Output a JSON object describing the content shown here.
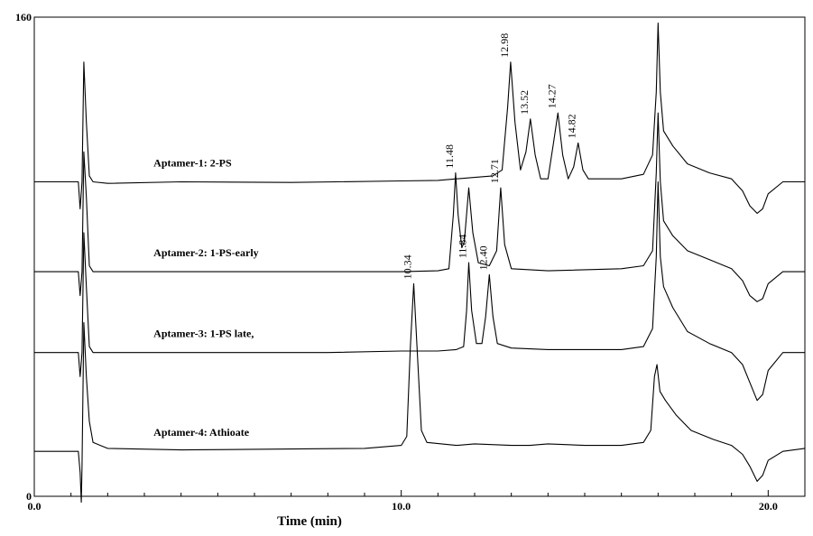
{
  "chart_data": {
    "type": "line",
    "title": "",
    "xlabel": "Time (min)",
    "ylabel": "",
    "xlim": [
      0.0,
      21.0
    ],
    "ylim": [
      0,
      160
    ],
    "x_ticks": [
      {
        "value": 0.0,
        "label": "0.0"
      },
      {
        "value": 10.0,
        "label": "10.0"
      },
      {
        "value": 20.0,
        "label": "20.0"
      }
    ],
    "y_ticks": [
      {
        "value": 0,
        "label": "0"
      },
      {
        "value": 160,
        "label": "160"
      }
    ],
    "grid": false,
    "series": [
      {
        "name": "Aptamer-1: 2-PS",
        "baseline": 105,
        "points": [
          [
            0.0,
            105
          ],
          [
            1.2,
            105
          ],
          [
            1.25,
            96
          ],
          [
            1.3,
            105
          ],
          [
            1.35,
            145
          ],
          [
            1.42,
            125
          ],
          [
            1.5,
            107
          ],
          [
            1.6,
            105
          ],
          [
            2.0,
            104.5
          ],
          [
            4.0,
            105
          ],
          [
            7.0,
            104.8
          ],
          [
            10.0,
            105.3
          ],
          [
            11.0,
            105.5
          ],
          [
            11.5,
            106
          ],
          [
            12.0,
            106.5
          ],
          [
            12.5,
            107
          ],
          [
            12.75,
            109
          ],
          [
            12.9,
            130
          ],
          [
            12.98,
            145
          ],
          [
            13.1,
            125
          ],
          [
            13.25,
            109
          ],
          [
            13.4,
            115
          ],
          [
            13.52,
            126
          ],
          [
            13.65,
            114
          ],
          [
            13.8,
            106
          ],
          [
            14.0,
            106
          ],
          [
            14.15,
            118
          ],
          [
            14.27,
            128
          ],
          [
            14.4,
            114
          ],
          [
            14.55,
            106
          ],
          [
            14.7,
            110
          ],
          [
            14.82,
            118
          ],
          [
            14.95,
            109
          ],
          [
            15.1,
            106
          ],
          [
            16.0,
            106
          ],
          [
            16.6,
            107.5
          ],
          [
            16.85,
            114
          ],
          [
            16.95,
            135
          ],
          [
            17.0,
            158
          ],
          [
            17.06,
            135
          ],
          [
            17.15,
            122
          ],
          [
            17.4,
            117
          ],
          [
            17.8,
            111
          ],
          [
            18.4,
            108
          ],
          [
            19.0,
            106
          ],
          [
            19.3,
            102
          ],
          [
            19.5,
            97
          ],
          [
            19.7,
            94.5
          ],
          [
            19.85,
            96
          ],
          [
            20.0,
            101
          ],
          [
            20.4,
            105
          ],
          [
            21.0,
            105
          ]
        ]
      },
      {
        "name": "Aptamer-2: 1-PS-early",
        "baseline": 75,
        "points": [
          [
            0.0,
            75
          ],
          [
            1.2,
            75
          ],
          [
            1.25,
            67
          ],
          [
            1.3,
            75
          ],
          [
            1.35,
            115
          ],
          [
            1.42,
            100
          ],
          [
            1.5,
            77
          ],
          [
            1.6,
            75
          ],
          [
            4.0,
            75
          ],
          [
            8.0,
            75
          ],
          [
            10.0,
            75
          ],
          [
            11.0,
            75.3
          ],
          [
            11.3,
            76
          ],
          [
            11.42,
            94
          ],
          [
            11.48,
            108
          ],
          [
            11.55,
            94
          ],
          [
            11.65,
            83
          ],
          [
            11.72,
            85
          ],
          [
            11.84,
            103
          ],
          [
            11.95,
            88
          ],
          [
            12.1,
            78
          ],
          [
            12.4,
            77
          ],
          [
            12.6,
            82
          ],
          [
            12.71,
            103
          ],
          [
            12.82,
            84
          ],
          [
            13.0,
            76
          ],
          [
            14.0,
            75.3
          ],
          [
            16.0,
            76
          ],
          [
            16.6,
            77
          ],
          [
            16.85,
            82
          ],
          [
            16.95,
            108
          ],
          [
            17.0,
            128
          ],
          [
            17.06,
            105
          ],
          [
            17.15,
            92
          ],
          [
            17.4,
            87
          ],
          [
            17.8,
            82
          ],
          [
            18.4,
            79
          ],
          [
            19.0,
            76
          ],
          [
            19.3,
            72
          ],
          [
            19.5,
            67
          ],
          [
            19.7,
            65
          ],
          [
            19.85,
            66
          ],
          [
            20.0,
            71
          ],
          [
            20.4,
            75
          ],
          [
            21.0,
            75
          ]
        ]
      },
      {
        "name": "Aptamer-3: 1-PS late,",
        "baseline": 48,
        "points": [
          [
            0.0,
            48
          ],
          [
            1.2,
            48
          ],
          [
            1.25,
            40
          ],
          [
            1.3,
            48
          ],
          [
            1.35,
            88
          ],
          [
            1.42,
            70
          ],
          [
            1.5,
            50
          ],
          [
            1.6,
            48
          ],
          [
            4.0,
            48
          ],
          [
            8.0,
            48
          ],
          [
            10.0,
            48.5
          ],
          [
            11.0,
            48.5
          ],
          [
            11.5,
            49
          ],
          [
            11.7,
            50
          ],
          [
            11.78,
            62
          ],
          [
            11.84,
            78
          ],
          [
            11.92,
            62
          ],
          [
            12.05,
            51
          ],
          [
            12.2,
            51
          ],
          [
            12.3,
            60
          ],
          [
            12.4,
            74
          ],
          [
            12.5,
            60
          ],
          [
            12.62,
            51
          ],
          [
            13.0,
            49.5
          ],
          [
            14.0,
            49
          ],
          [
            16.0,
            49
          ],
          [
            16.6,
            50
          ],
          [
            16.85,
            56
          ],
          [
            16.95,
            80
          ],
          [
            17.0,
            105
          ],
          [
            17.06,
            80
          ],
          [
            17.15,
            70
          ],
          [
            17.4,
            63
          ],
          [
            17.8,
            55
          ],
          [
            18.4,
            51
          ],
          [
            19.0,
            48
          ],
          [
            19.3,
            44
          ],
          [
            19.5,
            38
          ],
          [
            19.7,
            32
          ],
          [
            19.85,
            34
          ],
          [
            20.0,
            42
          ],
          [
            20.4,
            48
          ],
          [
            21.0,
            48
          ]
        ]
      },
      {
        "name": "Aptamer-4: Athioate",
        "baseline": 15,
        "points": [
          [
            0.0,
            15
          ],
          [
            1.2,
            15
          ],
          [
            1.25,
            8
          ],
          [
            1.28,
            -2
          ],
          [
            1.3,
            10
          ],
          [
            1.35,
            58
          ],
          [
            1.42,
            40
          ],
          [
            1.5,
            25
          ],
          [
            1.6,
            18
          ],
          [
            1.8,
            17
          ],
          [
            2.0,
            16
          ],
          [
            4.0,
            15.5
          ],
          [
            7.0,
            15.8
          ],
          [
            9.0,
            16
          ],
          [
            10.0,
            17
          ],
          [
            10.15,
            20
          ],
          [
            10.25,
            50
          ],
          [
            10.34,
            71
          ],
          [
            10.45,
            45
          ],
          [
            10.55,
            22
          ],
          [
            10.7,
            18
          ],
          [
            11.5,
            17
          ],
          [
            12.0,
            17.5
          ],
          [
            13.0,
            17
          ],
          [
            13.5,
            17
          ],
          [
            14.0,
            17.5
          ],
          [
            15.0,
            17
          ],
          [
            16.0,
            17
          ],
          [
            16.6,
            18
          ],
          [
            16.8,
            22
          ],
          [
            16.9,
            40
          ],
          [
            16.97,
            44
          ],
          [
            17.05,
            35
          ],
          [
            17.2,
            32
          ],
          [
            17.5,
            27
          ],
          [
            17.9,
            22
          ],
          [
            18.5,
            19
          ],
          [
            19.0,
            17
          ],
          [
            19.3,
            14
          ],
          [
            19.5,
            10
          ],
          [
            19.7,
            5
          ],
          [
            19.85,
            7
          ],
          [
            20.0,
            12
          ],
          [
            20.4,
            15
          ],
          [
            21.0,
            16
          ]
        ]
      }
    ],
    "peak_labels": [
      {
        "series": 0,
        "x": 12.98,
        "y": 145,
        "label": "12.98"
      },
      {
        "series": 0,
        "x": 13.52,
        "y": 126,
        "label": "13.52"
      },
      {
        "series": 0,
        "x": 14.27,
        "y": 128,
        "label": "14.27"
      },
      {
        "series": 0,
        "x": 14.82,
        "y": 118,
        "label": "14.82"
      },
      {
        "series": 1,
        "x": 11.48,
        "y": 108,
        "label": "11.48"
      },
      {
        "series": 1,
        "x": 12.71,
        "y": 103,
        "label": "12.71"
      },
      {
        "series": 2,
        "x": 11.84,
        "y": 78,
        "label": "11.84"
      },
      {
        "series": 2,
        "x": 12.4,
        "y": 74,
        "label": "12.40"
      },
      {
        "series": 3,
        "x": 10.34,
        "y": 71,
        "label": "10.34"
      }
    ],
    "series_label_position": "left, above each trace"
  }
}
